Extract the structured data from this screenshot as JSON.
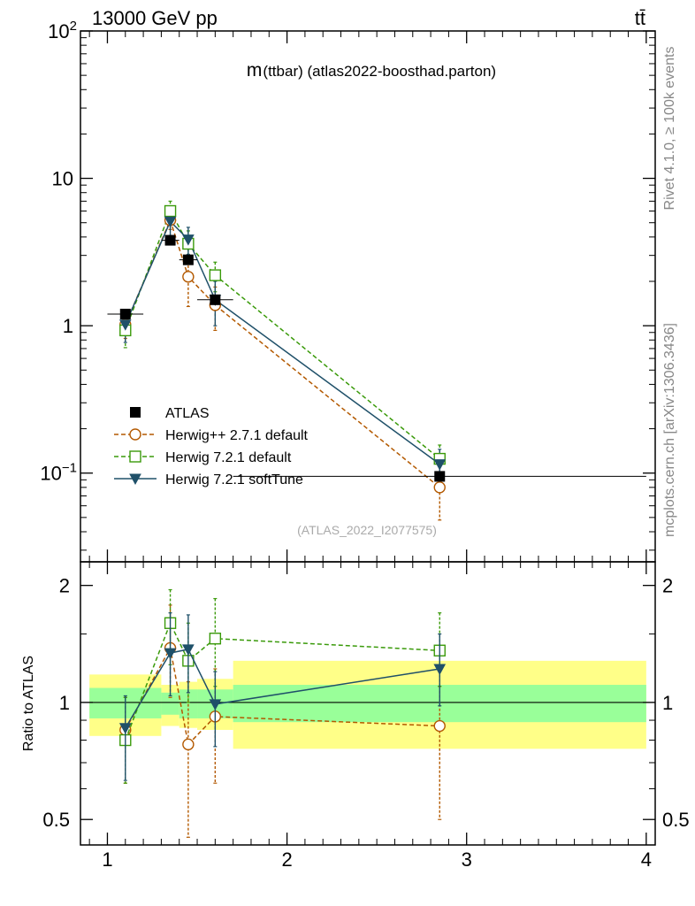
{
  "header": {
    "energy_label": "13000 GeV pp",
    "process_label": "tt̄"
  },
  "side_labels": {
    "rivet": "Rivet 4.1.0, ≥ 100k events",
    "mcplots": "mcplots.cern.ch [arXiv:1306.3436]"
  },
  "chart_data": {
    "type": "scatter",
    "title": "m(ttbar) (atlas2022-boosthad.parton)",
    "title_main": "m",
    "title_rest": "(ttbar) (atlas2022-boosthad.parton)",
    "analysis_id": "(ATLAS_2022_I2077575)",
    "xlim": [
      0.85,
      4.05
    ],
    "ylim": [
      0.025,
      100
    ],
    "yscale": "log",
    "x_ticks": [
      "1",
      "2",
      "3",
      "4"
    ],
    "y_ticks": [
      "10^-1",
      "1",
      "10",
      "10^2"
    ],
    "legend": {
      "placement": "lower-left",
      "entries": [
        "ATLAS",
        "Herwig++ 2.7.1 default",
        "Herwig 7.2.1 default",
        "Herwig 7.2.1 softTune"
      ]
    },
    "data": {
      "name": "ATLAS",
      "color": "#000000",
      "x": [
        1.1,
        1.35,
        1.45,
        1.6,
        2.85
      ],
      "y": [
        1.2,
        3.8,
        2.8,
        1.5,
        0.095
      ],
      "xerr": [
        0.1,
        0.05,
        0.05,
        0.1,
        1.15
      ]
    },
    "series": [
      {
        "name": "Herwig++ 2.7.1 default",
        "color": "#b35900",
        "dash": "dashed",
        "marker": "open-circle",
        "x": [
          1.1,
          1.35,
          1.45,
          1.6,
          2.85
        ],
        "y": [
          1.02,
          5.2,
          2.15,
          1.38,
          0.08
        ],
        "err": [
          0.2,
          0.7,
          0.8,
          0.45,
          0.032
        ]
      },
      {
        "name": "Herwig 7.2.1 default",
        "color": "#3a9a0a",
        "dash": "dashed",
        "marker": "open-square",
        "x": [
          1.1,
          1.35,
          1.45,
          1.6,
          2.85
        ],
        "y": [
          0.93,
          6.0,
          3.6,
          2.2,
          0.125
        ],
        "err": [
          0.22,
          1.0,
          0.8,
          0.5,
          0.03
        ]
      },
      {
        "name": "Herwig 7.2.1 softTune",
        "color": "#1f5069",
        "dash": "solid",
        "marker": "filled-triangle-down",
        "x": [
          1.1,
          1.35,
          1.45,
          1.6,
          2.85
        ],
        "y": [
          1.02,
          5.1,
          3.85,
          1.5,
          0.115
        ],
        "err": [
          0.25,
          1.0,
          0.8,
          0.5,
          0.03
        ]
      }
    ],
    "ratio": {
      "ylabel": "Ratio to ATLAS",
      "yscale": "log",
      "ylim": [
        0.43,
        2.3
      ],
      "y_ticks": [
        "0.5",
        "1",
        "2"
      ],
      "bands": [
        {
          "x0": 0.9,
          "x1": 1.3,
          "inner": [
            0.91,
            1.09
          ],
          "outer": [
            0.82,
            1.18
          ]
        },
        {
          "x0": 1.3,
          "x1": 1.4,
          "inner": [
            0.93,
            1.06
          ],
          "outer": [
            0.87,
            1.11
          ]
        },
        {
          "x0": 1.4,
          "x1": 1.5,
          "inner": [
            0.91,
            1.08
          ],
          "outer": [
            0.86,
            1.13
          ]
        },
        {
          "x0": 1.5,
          "x1": 1.7,
          "inner": [
            0.91,
            1.08
          ],
          "outer": [
            0.85,
            1.15
          ]
        },
        {
          "x0": 1.7,
          "x1": 4.0,
          "inner": [
            0.89,
            1.11
          ],
          "outer": [
            0.76,
            1.28
          ]
        }
      ],
      "series": [
        {
          "name": "Herwig++ 2.7.1 default",
          "y": [
            0.85,
            1.38,
            0.78,
            0.92,
            0.87
          ],
          "lo": [
            0.62,
            1.03,
            0.45,
            0.62,
            0.5
          ],
          "hi": [
            1.03,
            1.78,
            1.13,
            1.22,
            1.1
          ]
        },
        {
          "name": "Herwig 7.2.1 default",
          "y": [
            0.8,
            1.6,
            1.28,
            1.46,
            1.36
          ],
          "lo": [
            0.62,
            1.25,
            1.0,
            1.1,
            1.1
          ],
          "hi": [
            1.03,
            1.95,
            1.6,
            1.85,
            1.7
          ]
        },
        {
          "name": "Herwig 7.2.1 softTune",
          "y": [
            0.86,
            1.34,
            1.37,
            0.99,
            1.22
          ],
          "lo": [
            0.63,
            1.04,
            1.06,
            0.77,
            0.98
          ],
          "hi": [
            1.04,
            1.7,
            1.68,
            1.2,
            1.5
          ]
        }
      ]
    }
  }
}
